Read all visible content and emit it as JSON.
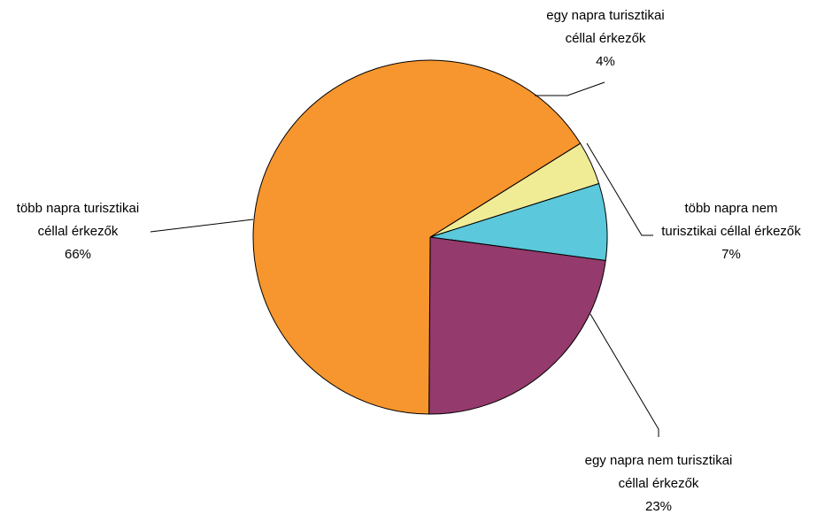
{
  "chart_data": {
    "type": "pie",
    "title": "",
    "slices": [
      {
        "label_lines": [
          "egy napra turisztikai",
          "céllal érkezők"
        ],
        "pct_label": "4%",
        "value": 4,
        "color": "#F0EC96"
      },
      {
        "label_lines": [
          "több napra nem",
          "turisztikai céllal érkezők"
        ],
        "pct_label": "7%",
        "value": 7,
        "color": "#5BC8DB"
      },
      {
        "label_lines": [
          "egy napra nem turisztikai",
          "céllal érkezők"
        ],
        "pct_label": "23%",
        "value": 23,
        "color": "#953A6C"
      },
      {
        "label_lines": [
          "több napra turisztikai",
          "céllal érkezők"
        ],
        "pct_label": "66%",
        "value": 66,
        "color": "#F7962E"
      }
    ]
  }
}
